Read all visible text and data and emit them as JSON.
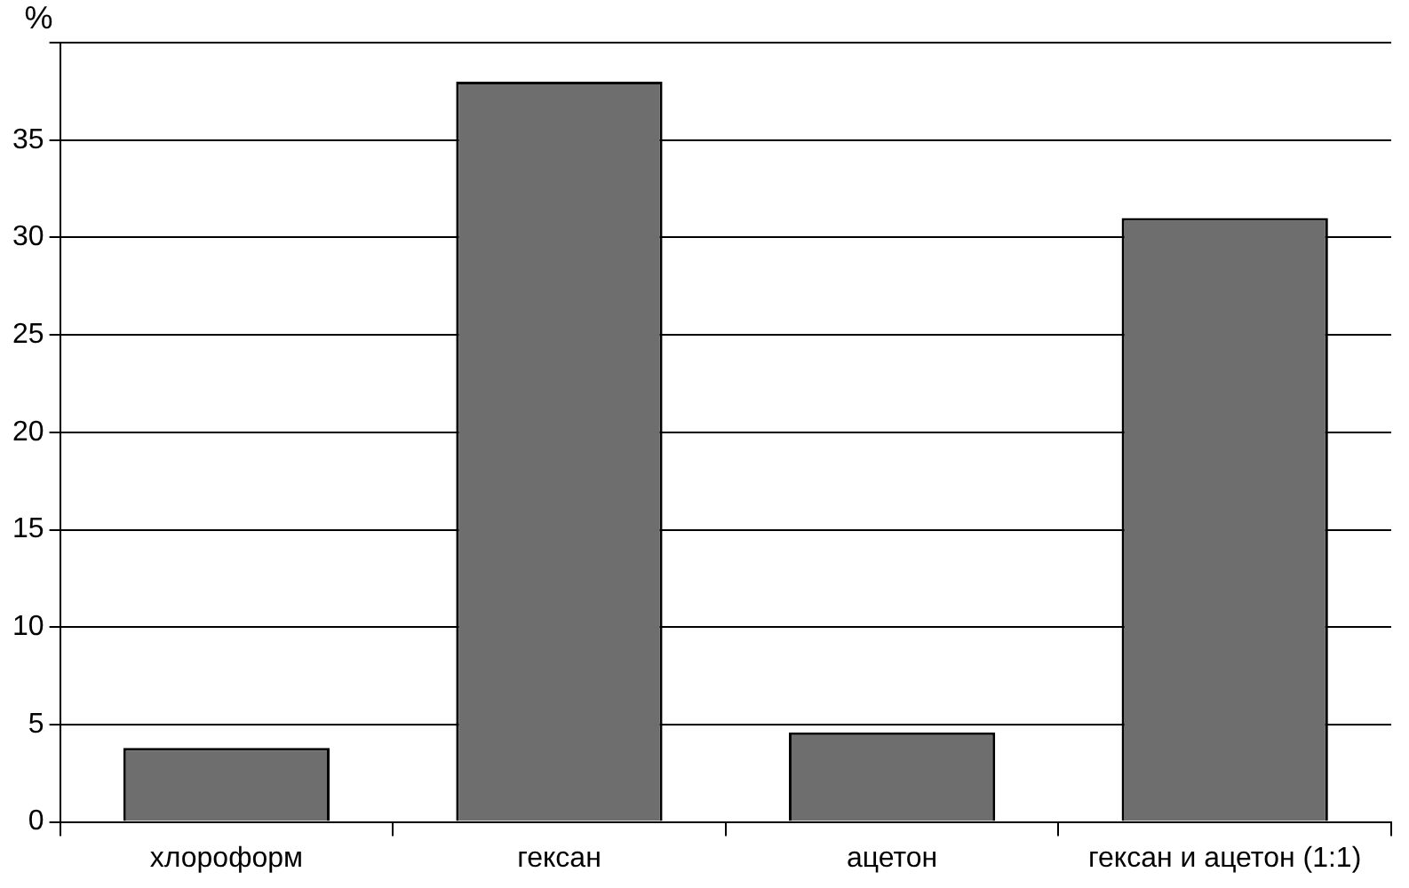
{
  "chart_data": {
    "type": "bar",
    "ylabel": "%",
    "categories": [
      "хлороформ",
      "гексан",
      "ацетон",
      "гексан и ацетон (1:1)"
    ],
    "values": [
      3.8,
      38,
      4.6,
      31
    ],
    "color": "#6e6e6e",
    "ylim": [
      0,
      40
    ],
    "yticks": [
      0,
      5,
      10,
      15,
      20,
      25,
      30,
      35,
      {
        "value": 40,
        "label": null
      }
    ],
    "grid": "y"
  }
}
